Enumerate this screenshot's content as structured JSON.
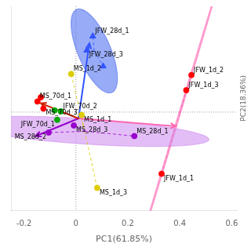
{
  "chart_data": {
    "type": "scatter",
    "x_label": "PC1(61.85%)",
    "y_label": "PC2(18.36%)",
    "xlim": [
      -0.25,
      0.62
    ],
    "xticks": [
      -0.2,
      0,
      0.2,
      0.4,
      0.6
    ],
    "ylim": [
      -0.28,
      0.3
    ],
    "tick_labels": "x",
    "grid": false,
    "reference_lines": {
      "x": 0,
      "y": 0
    },
    "series": [
      {
        "color": "#ff0000",
        "marker": "circle",
        "x": [
          0.33,
          0.445,
          0.425
        ],
        "values": [
          -0.175,
          0.105,
          0.062
        ],
        "labels": [
          "JFW_1d_1",
          "JFW_1d_2",
          "JFW_1d_3"
        ],
        "center": [
          0.4,
          -0.0026667
        ],
        "ellipse": {
          "width": 0.9118,
          "height": 0.0065,
          "angle": 67.84,
          "color": "#ff69b4"
        },
        "spokes": {
          "color": "#ff69b4"
        }
      },
      {
        "color": "#3355ff",
        "marker": "triangle",
        "x": [
          0.065,
          0.042,
          0.105
        ],
        "values": [
          0.215,
          0.175,
          0.13
        ],
        "labels": [
          "JFW_28d_1",
          "JFW_28d_3",
          null
        ],
        "center": [
          0.0706667,
          0.1733333
        ],
        "ellipse": {
          "width": 0.27335,
          "height": 0.11773,
          "angle": 122.96,
          "color": "#4466ee"
        },
        "spokes": {
          "color": "#3355ff"
        }
      },
      {
        "color": "#00aa00",
        "marker": "circle",
        "x": [
          -0.072,
          -0.058,
          -0.082
        ],
        "values": [
          -0.022,
          0.002,
          0.005
        ],
        "labels": [
          "JFW_70d_1",
          "JFW_70d_2",
          null
        ]
      },
      {
        "color": "#ddcc00",
        "marker": "circle",
        "x": [
          -0.018,
          0.082,
          0.022
        ],
        "values": [
          0.108,
          -0.215,
          -0.008
        ],
        "labels": [
          "MS_1d_2",
          "MS_1d_3",
          "MS_1d_1"
        ],
        "center": [
          0.0286667,
          -0.0383333
        ],
        "spokes": {
          "color": "#ddcc00"
        }
      },
      {
        "color": "#9900cc",
        "marker": "circle",
        "x": [
          -0.105,
          0.225,
          -0.008
        ],
        "values": [
          -0.058,
          -0.068,
          -0.038
        ],
        "labels": [
          "MS_28d_2",
          "MS_28d_1",
          "MS_28d_3"
        ],
        "center": [
          0.0373333,
          -0.0546667
        ],
        "ellipse": {
          "width": 0.95091,
          "height": 0.07207,
          "angle": 177.22,
          "color": "#cc88ee"
        },
        "spokes": {
          "color": "#9900cc"
        }
      },
      {
        "color": "#ff0000",
        "marker": "circle",
        "x": [
          -0.148,
          -0.135,
          -0.125
        ],
        "values": [
          0.03,
          0.042,
          0.01
        ],
        "labels": [
          "MS_70d_1",
          null,
          "MS_70d_3"
        ]
      }
    ],
    "arrows": [
      {
        "from": [
          0.01,
          -0.018
        ],
        "to": [
          0.385,
          -0.04
        ],
        "color": "#ff69b4"
      },
      {
        "from": [
          0.01,
          -0.018
        ],
        "to": [
          0.052,
          0.195
        ],
        "color": "#3355ff"
      },
      {
        "from": [
          0.01,
          -0.018
        ],
        "to": [
          -0.155,
          -0.068
        ],
        "color": "#9900cc"
      },
      {
        "from": [
          0.01,
          -0.018
        ],
        "to": [
          -0.135,
          0.025
        ],
        "color": "#cc2200"
      }
    ]
  }
}
